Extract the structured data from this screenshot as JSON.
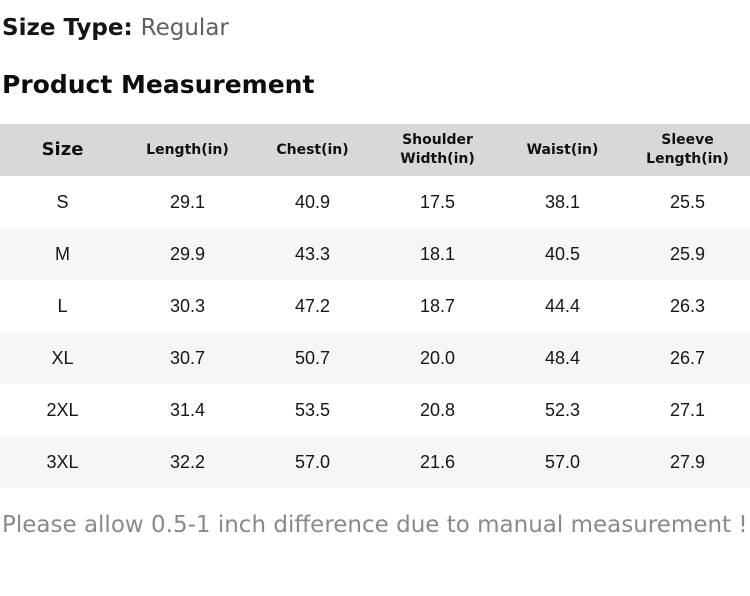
{
  "meta": {
    "size_type_label": "Size Type:",
    "size_type_value": "Regular",
    "section_title": "Product Measurement"
  },
  "table": {
    "columns": [
      "Size",
      "Length(in)",
      "Chest(in)",
      "Shoulder Width(in)",
      "Waist(in)",
      "Sleeve Length(in)"
    ],
    "rows": [
      {
        "size": "S",
        "values": [
          "29.1",
          "40.9",
          "17.5",
          "38.1",
          "25.5"
        ]
      },
      {
        "size": "M",
        "values": [
          "29.9",
          "43.3",
          "18.1",
          "40.5",
          "25.9"
        ]
      },
      {
        "size": "L",
        "values": [
          "30.3",
          "47.2",
          "18.7",
          "44.4",
          "26.3"
        ]
      },
      {
        "size": "XL",
        "values": [
          "30.7",
          "50.7",
          "20.0",
          "48.4",
          "26.7"
        ]
      },
      {
        "size": "2XL",
        "values": [
          "31.4",
          "53.5",
          "20.8",
          "52.3",
          "27.1"
        ]
      },
      {
        "size": "3XL",
        "values": [
          "32.2",
          "57.0",
          "21.6",
          "57.0",
          "27.9"
        ]
      }
    ]
  },
  "footer": {
    "note": "Please allow 0.5-1 inch difference due to manual measurement !"
  },
  "colors": {
    "header_bg": "#d8d8d8",
    "row_alt_bg": "#f6f6f6",
    "text": "#151515",
    "muted_text": "#5f5f5f",
    "note_text": "#8a8a8a"
  },
  "chart_data": {
    "type": "table",
    "title": "Product Measurement",
    "columns": [
      "Size",
      "Length(in)",
      "Chest(in)",
      "Shoulder Width(in)",
      "Waist(in)",
      "Sleeve Length(in)"
    ],
    "rows": [
      [
        "S",
        29.1,
        40.9,
        17.5,
        38.1,
        25.5
      ],
      [
        "M",
        29.9,
        43.3,
        18.1,
        40.5,
        25.9
      ],
      [
        "L",
        30.3,
        47.2,
        18.7,
        44.4,
        26.3
      ],
      [
        "XL",
        30.7,
        50.7,
        20.0,
        48.4,
        26.7
      ],
      [
        "2XL",
        31.4,
        53.5,
        20.8,
        52.3,
        27.1
      ],
      [
        "3XL",
        32.2,
        57.0,
        21.6,
        57.0,
        27.9
      ]
    ]
  }
}
